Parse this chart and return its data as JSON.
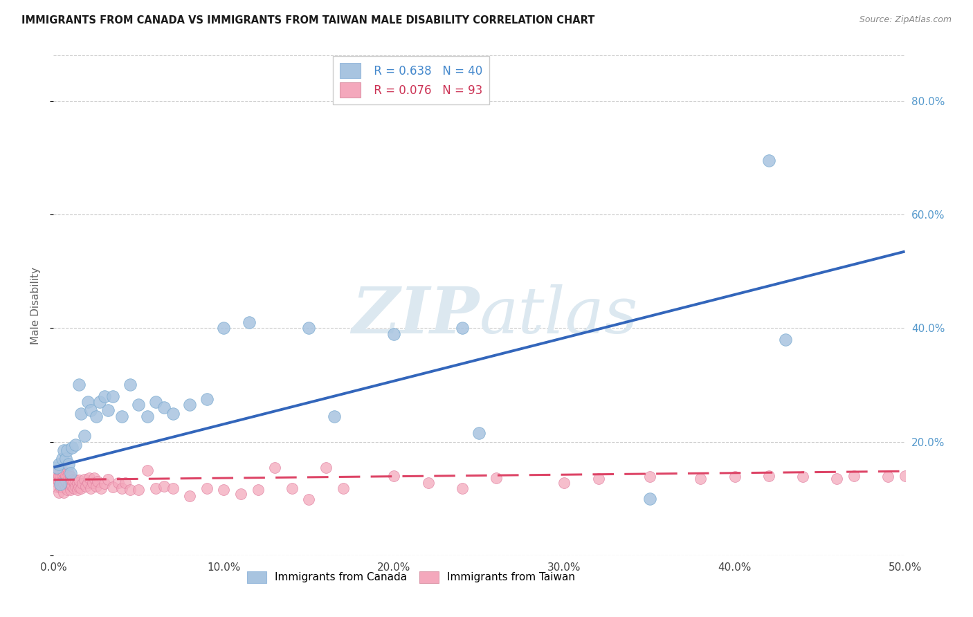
{
  "title": "IMMIGRANTS FROM CANADA VS IMMIGRANTS FROM TAIWAN MALE DISABILITY CORRELATION CHART",
  "source": "Source: ZipAtlas.com",
  "ylabel": "Male Disability",
  "xlim": [
    0.0,
    0.5
  ],
  "ylim": [
    0.0,
    0.88
  ],
  "xtick_vals": [
    0.0,
    0.1,
    0.2,
    0.3,
    0.4,
    0.5
  ],
  "ytick_vals": [
    0.0,
    0.2,
    0.4,
    0.6,
    0.8
  ],
  "canada_R": 0.638,
  "canada_N": 40,
  "taiwan_R": 0.076,
  "taiwan_N": 93,
  "canada_color": "#a8c4e0",
  "canada_edge_color": "#7aaad0",
  "taiwan_color": "#f4a8bc",
  "taiwan_edge_color": "#e080a0",
  "canada_line_color": "#3366bb",
  "taiwan_line_color": "#dd4466",
  "watermark_color": "#dce8f0",
  "canada_line_x0": 0.0,
  "canada_line_y0": 0.155,
  "canada_line_x1": 0.5,
  "canada_line_y1": 0.535,
  "taiwan_line_x0": 0.0,
  "taiwan_line_y0": 0.133,
  "taiwan_line_x1": 0.5,
  "taiwan_line_y1": 0.148,
  "canada_x": [
    0.002,
    0.003,
    0.004,
    0.005,
    0.006,
    0.007,
    0.008,
    0.009,
    0.01,
    0.011,
    0.013,
    0.015,
    0.016,
    0.018,
    0.02,
    0.022,
    0.025,
    0.027,
    0.03,
    0.032,
    0.035,
    0.04,
    0.045,
    0.05,
    0.055,
    0.06,
    0.065,
    0.07,
    0.08,
    0.09,
    0.1,
    0.115,
    0.15,
    0.165,
    0.2,
    0.24,
    0.25,
    0.35,
    0.42,
    0.43
  ],
  "canada_y": [
    0.155,
    0.16,
    0.125,
    0.17,
    0.185,
    0.17,
    0.185,
    0.16,
    0.145,
    0.19,
    0.195,
    0.3,
    0.25,
    0.21,
    0.27,
    0.255,
    0.245,
    0.27,
    0.28,
    0.255,
    0.28,
    0.245,
    0.3,
    0.265,
    0.245,
    0.27,
    0.26,
    0.25,
    0.265,
    0.275,
    0.4,
    0.41,
    0.4,
    0.245,
    0.39,
    0.4,
    0.215,
    0.1,
    0.695,
    0.38
  ],
  "taiwan_x": [
    0.001,
    0.001,
    0.001,
    0.002,
    0.002,
    0.002,
    0.003,
    0.003,
    0.003,
    0.003,
    0.004,
    0.004,
    0.004,
    0.004,
    0.005,
    0.005,
    0.005,
    0.005,
    0.006,
    0.006,
    0.006,
    0.006,
    0.007,
    0.007,
    0.007,
    0.008,
    0.008,
    0.008,
    0.009,
    0.009,
    0.009,
    0.01,
    0.01,
    0.01,
    0.011,
    0.011,
    0.012,
    0.012,
    0.013,
    0.013,
    0.014,
    0.014,
    0.015,
    0.015,
    0.016,
    0.017,
    0.018,
    0.019,
    0.02,
    0.021,
    0.022,
    0.023,
    0.024,
    0.025,
    0.026,
    0.028,
    0.03,
    0.032,
    0.035,
    0.038,
    0.04,
    0.042,
    0.045,
    0.05,
    0.055,
    0.06,
    0.065,
    0.07,
    0.08,
    0.09,
    0.1,
    0.11,
    0.12,
    0.13,
    0.14,
    0.15,
    0.16,
    0.17,
    0.2,
    0.22,
    0.24,
    0.26,
    0.3,
    0.32,
    0.35,
    0.38,
    0.4,
    0.42,
    0.44,
    0.46,
    0.47,
    0.49,
    0.5
  ],
  "taiwan_y": [
    0.13,
    0.14,
    0.15,
    0.12,
    0.135,
    0.145,
    0.11,
    0.13,
    0.14,
    0.15,
    0.12,
    0.13,
    0.14,
    0.15,
    0.12,
    0.13,
    0.14,
    0.15,
    0.11,
    0.125,
    0.135,
    0.145,
    0.12,
    0.13,
    0.14,
    0.115,
    0.128,
    0.138,
    0.125,
    0.135,
    0.145,
    0.115,
    0.128,
    0.138,
    0.122,
    0.132,
    0.118,
    0.13,
    0.122,
    0.133,
    0.115,
    0.128,
    0.12,
    0.132,
    0.118,
    0.126,
    0.134,
    0.122,
    0.128,
    0.136,
    0.118,
    0.128,
    0.136,
    0.122,
    0.13,
    0.118,
    0.126,
    0.134,
    0.12,
    0.128,
    0.118,
    0.128,
    0.115,
    0.115,
    0.15,
    0.118,
    0.122,
    0.118,
    0.105,
    0.118,
    0.115,
    0.108,
    0.115,
    0.155,
    0.118,
    0.098,
    0.155,
    0.118,
    0.14,
    0.128,
    0.118,
    0.136,
    0.128,
    0.135,
    0.138,
    0.135,
    0.138,
    0.14,
    0.138,
    0.135,
    0.14,
    0.138,
    0.14
  ]
}
